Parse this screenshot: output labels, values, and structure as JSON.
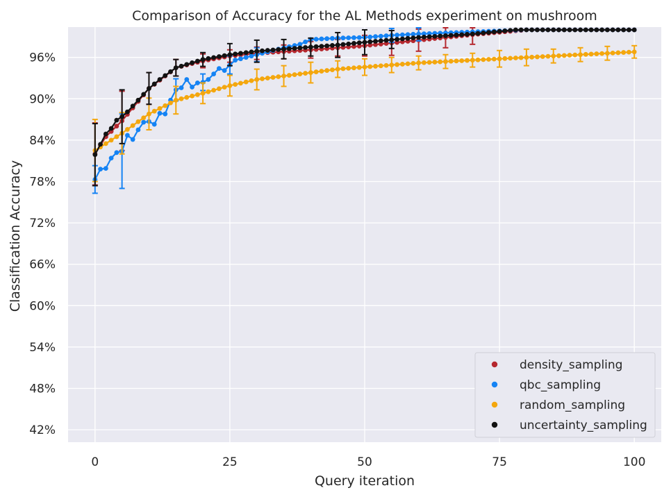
{
  "chart_data": {
    "type": "scatter",
    "title": "Comparison of Accuracy for the AL Methods experiment on mushroom",
    "xlabel": "Query iteration",
    "ylabel": "Classification Accuracy",
    "xlim": [
      -5,
      105
    ],
    "ylim": [
      40.2,
      100.4
    ],
    "xticks": [
      0,
      25,
      50,
      75,
      100
    ],
    "xtick_labels": [
      "0",
      "25",
      "50",
      "75",
      "100"
    ],
    "yticks": [
      42,
      48,
      54,
      60,
      66,
      72,
      78,
      84,
      90,
      96
    ],
    "ytick_labels": [
      "42%",
      "48%",
      "54%",
      "60%",
      "66%",
      "72%",
      "78%",
      "84%",
      "90%",
      "96%"
    ],
    "grid": true,
    "legend_position": "lower-right",
    "background_color": "#e9e9f1",
    "series": [
      {
        "name": "density_sampling",
        "color": "#b5282f",
        "anchor_x": [
          0,
          2,
          5,
          10,
          15,
          20,
          25,
          30,
          40,
          50,
          60,
          70,
          80,
          100
        ],
        "anchor_y": [
          82.0,
          84.5,
          86.8,
          91.5,
          94.5,
          95.5,
          96.2,
          96.6,
          97.1,
          97.7,
          98.5,
          99.3,
          100.0,
          100.0
        ],
        "error_x": [
          0,
          5,
          10,
          15,
          20,
          25,
          30,
          35,
          40,
          45,
          50,
          55,
          60,
          65,
          70
        ],
        "error_y": [
          82.0,
          86.8,
          91.5,
          94.5,
          95.5,
          96.2,
          96.6,
          96.8,
          97.1,
          97.4,
          97.7,
          98.1,
          98.5,
          98.9,
          99.3
        ],
        "error_e": [
          4.5,
          4.3,
          2.3,
          1.2,
          1.0,
          0.9,
          0.9,
          1.0,
          1.2,
          1.2,
          1.5,
          1.8,
          1.6,
          1.5,
          1.4
        ]
      },
      {
        "name": "qbc_sampling",
        "color": "#1583f4",
        "points_y_head": [
          78.3,
          79.8,
          79.9,
          81.4,
          82.2,
          82.4,
          84.7,
          84.1,
          85.5,
          86.6,
          86.7,
          86.3,
          87.9,
          87.8,
          89.8,
          91.3,
          91.6,
          92.8,
          91.7,
          92.3,
          92.4,
          92.8,
          93.6,
          94.4,
          94.1,
          94.9,
          95.6,
          95.8,
          96.0,
          96.2,
          96.4,
          96.6,
          96.8,
          97.0,
          97.2
        ],
        "anchor_x": [
          34,
          38,
          40,
          45,
          50,
          55,
          60,
          70,
          80,
          100
        ],
        "anchor_y": [
          97.2,
          97.9,
          98.6,
          98.8,
          98.9,
          99.2,
          99.4,
          99.7,
          100.0,
          100.0
        ],
        "error_x": [
          0,
          5,
          15,
          20,
          25,
          30,
          55,
          60
        ],
        "error_y": [
          78.3,
          82.4,
          91.3,
          92.4,
          94.9,
          96.4,
          99.2,
          99.4
        ],
        "error_e": [
          2.0,
          5.4,
          1.6,
          1.2,
          1.3,
          1.0,
          1.0,
          1.0
        ]
      },
      {
        "name": "random_sampling",
        "color": "#f4a70e",
        "anchor_x": [
          0,
          5,
          10,
          15,
          20,
          25,
          30,
          35,
          40,
          45,
          50,
          55,
          60,
          65,
          70,
          75,
          80,
          85,
          90,
          95,
          100
        ],
        "anchor_y": [
          82.5,
          85.0,
          87.8,
          89.8,
          90.8,
          91.9,
          92.8,
          93.3,
          93.8,
          94.3,
          94.6,
          94.9,
          95.2,
          95.4,
          95.6,
          95.8,
          96.0,
          96.2,
          96.4,
          96.6,
          96.8
        ],
        "error_x": [
          0,
          5,
          10,
          15,
          20,
          25,
          30,
          35,
          40,
          45,
          50,
          55,
          60,
          65,
          70,
          75,
          80,
          85,
          90,
          95,
          100
        ],
        "error_y": [
          82.5,
          85.0,
          87.8,
          89.8,
          90.8,
          91.9,
          92.8,
          93.3,
          93.8,
          94.3,
          94.6,
          94.9,
          95.2,
          95.4,
          95.6,
          95.8,
          96.0,
          96.2,
          96.4,
          96.6,
          96.8
        ],
        "error_e": [
          4.5,
          3.0,
          2.3,
          2.0,
          1.5,
          1.5,
          1.5,
          1.5,
          1.5,
          1.2,
          1.2,
          1.1,
          1.0,
          1.0,
          1.0,
          1.2,
          1.2,
          1.0,
          1.0,
          1.0,
          0.9
        ]
      },
      {
        "name": "uncertainty_sampling",
        "color": "#121212",
        "anchor_x": [
          0,
          1,
          2,
          3,
          4,
          5,
          6,
          8,
          10,
          12,
          15,
          20,
          25,
          30,
          35,
          40,
          45,
          50,
          60,
          70,
          78,
          100
        ],
        "anchor_y": [
          81.9,
          83.4,
          84.9,
          85.7,
          86.9,
          87.4,
          88.1,
          89.8,
          91.5,
          92.8,
          94.5,
          95.7,
          96.4,
          96.9,
          97.2,
          97.5,
          97.8,
          98.2,
          98.9,
          99.4,
          100.0,
          100.0
        ],
        "error_x": [
          0,
          5,
          10,
          15,
          20,
          25,
          30,
          35,
          40,
          45,
          50,
          55
        ],
        "error_y": [
          81.9,
          87.4,
          91.5,
          94.5,
          95.7,
          96.4,
          96.9,
          97.2,
          97.5,
          97.8,
          98.2,
          98.6
        ],
        "error_e": [
          4.5,
          3.9,
          2.3,
          1.2,
          1.0,
          1.6,
          1.6,
          1.4,
          1.3,
          1.8,
          1.8,
          1.3
        ]
      }
    ]
  }
}
